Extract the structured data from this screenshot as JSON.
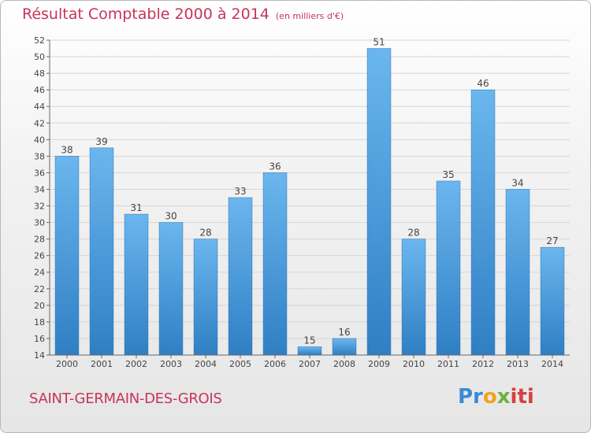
{
  "chart_data": {
    "type": "bar",
    "title": "Résultat Comptable 2000 à 2014",
    "unit": "(en milliers d'€)",
    "categories": [
      "2000",
      "2001",
      "2002",
      "2003",
      "2004",
      "2005",
      "2006",
      "2007",
      "2008",
      "2009",
      "2010",
      "2011",
      "2012",
      "2013",
      "2014"
    ],
    "values": [
      38,
      39,
      31,
      30,
      28,
      33,
      36,
      15,
      16,
      51,
      28,
      35,
      46,
      34,
      27
    ],
    "ylim": [
      14,
      52
    ],
    "yticks": [
      14,
      16,
      18,
      20,
      22,
      24,
      26,
      28,
      30,
      32,
      34,
      36,
      38,
      40,
      42,
      44,
      46,
      48,
      50,
      52
    ],
    "grid": true,
    "bar_color": "#4a9de0"
  },
  "commune": "SAINT-GERMAIN-DES-GROIS",
  "logo": {
    "p1": "Pr",
    "p2": "o",
    "p3": "x",
    "p4": "iti"
  }
}
